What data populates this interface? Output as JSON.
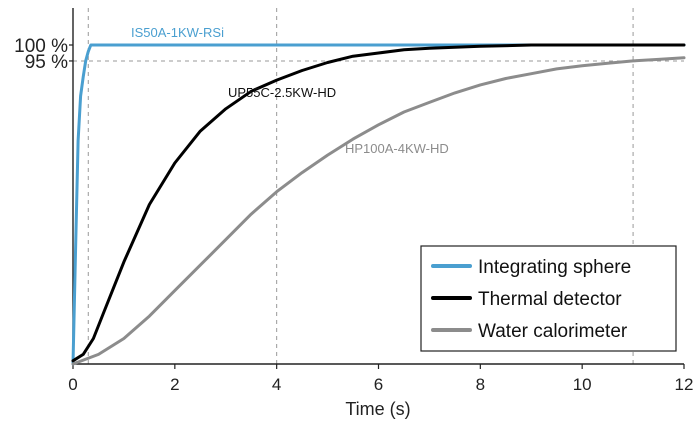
{
  "chart_data": {
    "type": "line",
    "xlabel": "Time (s)",
    "xlim": [
      0,
      12
    ],
    "ylim": [
      0,
      105
    ],
    "x_ticks": [
      0,
      2,
      4,
      6,
      8,
      10,
      12
    ],
    "y_tick_labels": [
      {
        "label": "100 %",
        "value": 100
      },
      {
        "label": "95 %",
        "value": 95
      }
    ],
    "reference_lines": {
      "horizontal": [
        95
      ],
      "vertical": [
        0.3,
        4,
        11
      ]
    },
    "legend": {
      "position": "bottom-right"
    },
    "series": [
      {
        "name": "Integrating sphere",
        "color": "#4a9fd0",
        "annotation": "IS50A-1KW-RSi",
        "x": [
          0,
          0.05,
          0.1,
          0.15,
          0.2,
          0.25,
          0.3,
          0.35,
          0.5,
          1,
          2,
          4,
          6,
          8,
          10,
          12
        ],
        "y": [
          0,
          35,
          70,
          84,
          90,
          95,
          98,
          100,
          100,
          100,
          100,
          100,
          100,
          100,
          100,
          100
        ]
      },
      {
        "name": "Thermal detector",
        "color": "#000000",
        "annotation": "UP55C-2.5KW-HD",
        "x": [
          0,
          0.2,
          0.4,
          0.6,
          0.8,
          1,
          1.5,
          2,
          2.5,
          3,
          3.5,
          4,
          4.5,
          5,
          5.5,
          6,
          6.5,
          7,
          8,
          9,
          10,
          11,
          12
        ],
        "y": [
          1,
          3,
          8,
          16,
          24,
          32,
          50,
          63,
          73,
          80,
          85.5,
          89,
          92,
          94.5,
          96.5,
          97.5,
          98.5,
          99,
          99.6,
          100,
          100,
          100,
          100
        ]
      },
      {
        "name": "Water calorimeter",
        "color": "#8c8c8c",
        "annotation": "HP100A-4KW-HD",
        "x": [
          0,
          0.5,
          1,
          1.5,
          2,
          2.5,
          3,
          3.5,
          4,
          4.5,
          5,
          5.5,
          6,
          6.5,
          7,
          7.5,
          8,
          8.5,
          9,
          9.5,
          10,
          10.5,
          11,
          11.5,
          12
        ],
        "y": [
          0,
          3,
          8,
          15,
          23,
          31,
          39,
          47,
          54,
          60,
          65.5,
          70.5,
          75,
          79,
          82,
          85,
          87.5,
          89.5,
          91,
          92.5,
          93.5,
          94.3,
          95,
          95.5,
          96
        ]
      }
    ]
  }
}
